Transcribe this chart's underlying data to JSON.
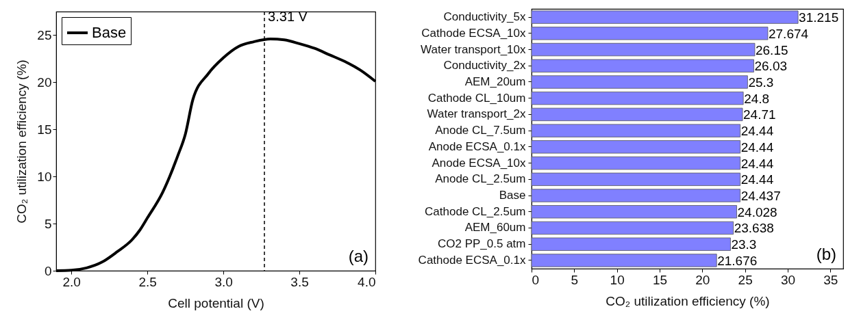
{
  "chart_data": [
    {
      "type": "line",
      "xlabel": "Cell potential (V)",
      "ylabel": "CO₂ utilization efficiency (%)",
      "xlim": [
        1.9,
        4.0
      ],
      "xticks": [
        {
          "value": 2,
          "label": "2.0"
        },
        2.5,
        {
          "value": 3,
          "label": "3.0"
        },
        3.5,
        {
          "value": 4,
          "label": "4.0"
        }
      ],
      "ylim": [
        0,
        27.5
      ],
      "yticks": [
        0,
        5,
        10,
        15,
        20,
        25
      ],
      "legend": "top left",
      "x": [
        1.9,
        2.0,
        2.1,
        2.2,
        2.3,
        2.4,
        2.45,
        2.5,
        2.6,
        2.7,
        2.75,
        2.8,
        2.9,
        3.0,
        3.1,
        3.2,
        3.31,
        3.4,
        3.5,
        3.6,
        3.7,
        3.8,
        3.9,
        4.0
      ],
      "series": [
        {
          "name": "Base",
          "color": "#000000",
          "values": [
            0,
            0.05,
            0.3,
            0.9,
            2.0,
            3.3,
            4.3,
            5.6,
            8.3,
            12.2,
            14.5,
            18.2,
            20.9,
            22.6,
            23.8,
            24.3,
            24.6,
            24.5,
            24.1,
            23.6,
            22.9,
            22.2,
            21.3,
            20.1
          ]
        }
      ],
      "ref_lines": [
        {
          "axis": "x",
          "value": 3.27,
          "label": "3.31 V",
          "line_style": "dashed",
          "color": "#000000"
        }
      ],
      "annotations": [
        "(a)"
      ]
    },
    {
      "type": "bar",
      "orientation": "horizontal",
      "xlabel": "CO₂ utilization efficiency (%)",
      "xlim": [
        0,
        36.5
      ],
      "xticks": [
        0,
        5,
        10,
        15,
        20,
        25,
        30,
        35
      ],
      "color": "#8080ff",
      "data_labels": true,
      "categories": [
        "Conductivity_5x",
        "Cathode ECSA_10x",
        "Water transport_10x",
        "Conductivity_2x",
        "AEM_20um",
        "Cathode CL_10um",
        "Water transport_2x",
        "Anode CL_7.5um",
        "Anode ECSA_0.1x",
        "Anode ECSA_10x",
        "Anode CL_2.5um",
        "Base",
        "Cathode CL_2.5um",
        "AEM_60um",
        "CO2 PP_0.5 atm",
        "Cathode ECSA_0.1x"
      ],
      "values": [
        31.215,
        27.674,
        26.15,
        26.03,
        25.3,
        24.8,
        24.71,
        24.44,
        24.44,
        24.44,
        24.44,
        24.437,
        24.028,
        23.638,
        23.3,
        21.676
      ],
      "annotations": [
        "(b)"
      ]
    }
  ]
}
